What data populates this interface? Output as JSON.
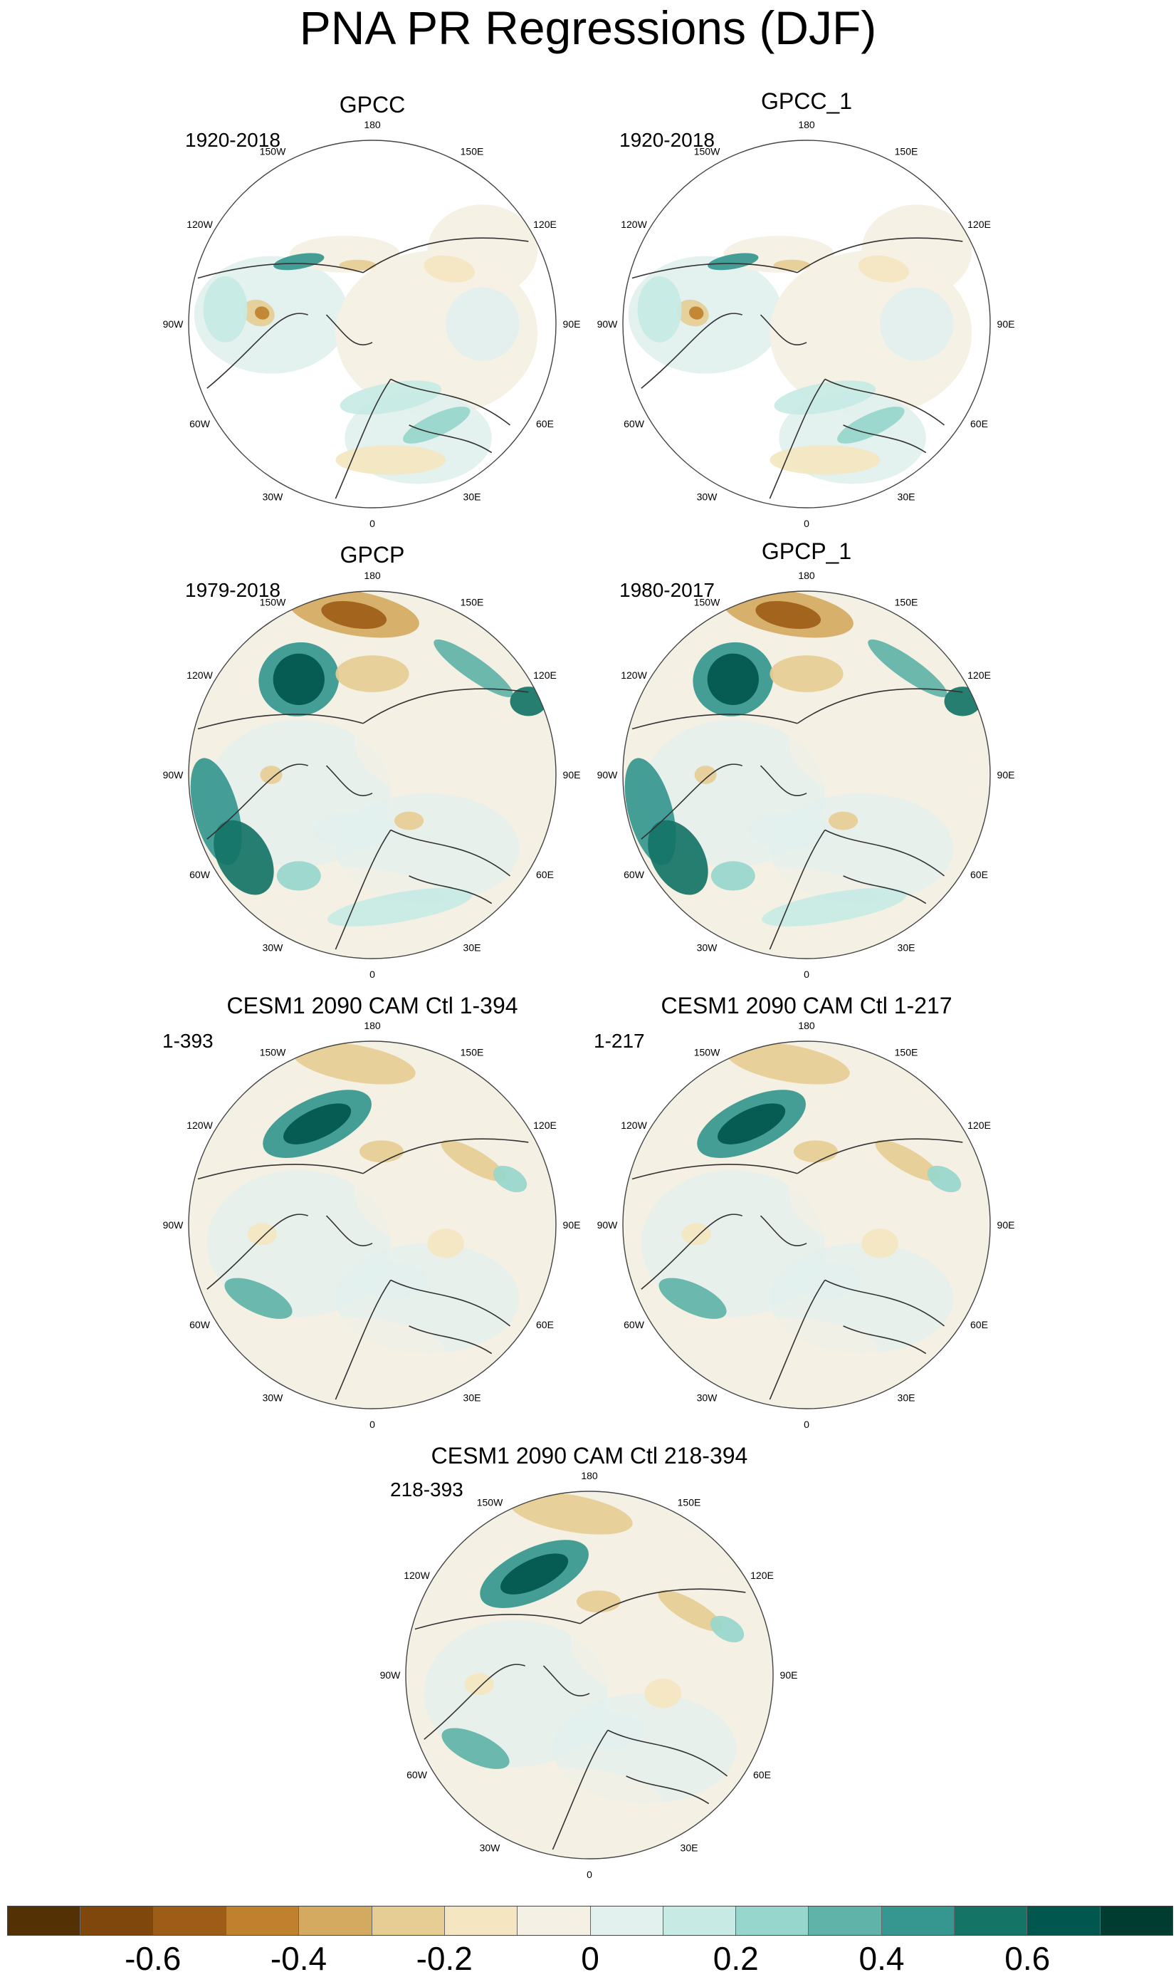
{
  "title": "PNA PR Regressions (DJF)",
  "longitude_labels": [
    "180",
    "150E",
    "120E",
    "90E",
    "60E",
    "30E",
    "0",
    "30W",
    "60W",
    "90W",
    "120W",
    "150W"
  ],
  "panels": [
    {
      "title": "GPCC",
      "period": "1920-2018",
      "field": "gpcc"
    },
    {
      "title": "GPCC_1",
      "period": "1920-2018",
      "field": "gpcc"
    },
    {
      "title": "GPCP",
      "period": "1979-2018",
      "field": "gpcp"
    },
    {
      "title": "GPCP_1",
      "period": "1980-2017",
      "field": "gpcp"
    },
    {
      "title": "CESM1 2090 CAM Ctl 1-394",
      "period": "1-393",
      "field": "cesm"
    },
    {
      "title": "CESM1 2090 CAM Ctl 1-217",
      "period": "1-217",
      "field": "cesm"
    },
    {
      "title": "CESM1 2090 CAM Ctl 218-394",
      "period": "218-393",
      "field": "cesm"
    }
  ],
  "colorbar": {
    "colors": [
      "#543005",
      "#7f470c",
      "#9e5d17",
      "#bf812d",
      "#d4aa61",
      "#e6cd94",
      "#f4e6c0",
      "#f5f0e4",
      "#e2f0ee",
      "#c7eae5",
      "#97d6cc",
      "#5fb3a8",
      "#35978f",
      "#147466",
      "#01564d",
      "#003c30"
    ],
    "labels": [
      "-0.6",
      "-0.4",
      "-0.2",
      "0",
      "0.2",
      "0.4",
      "0.6"
    ]
  }
}
